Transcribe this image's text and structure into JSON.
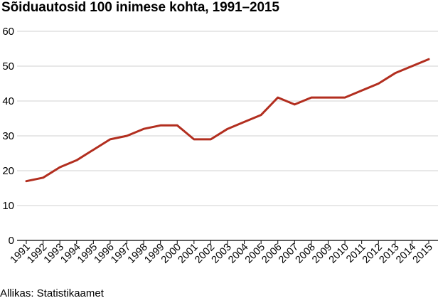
{
  "chart_data": {
    "type": "line",
    "title": "Sõiduautosid 100 inimese kohta, 1991–2015",
    "source": "Allikas: Statistikaamet",
    "xlabel": "",
    "ylabel": "",
    "ylim": [
      0,
      60
    ],
    "yticks": [
      0,
      10,
      20,
      30,
      40,
      50,
      60
    ],
    "grid": true,
    "line_color": "#b22e1f",
    "categories": [
      "1991",
      "1992",
      "1993",
      "1994",
      "1995",
      "1996",
      "1997",
      "1998",
      "1999",
      "2000",
      "2001",
      "2002",
      "2003",
      "2004",
      "2005",
      "2006",
      "2007",
      "2008",
      "2009",
      "2010",
      "2011",
      "2012",
      "2013",
      "2014",
      "2015"
    ],
    "series": [
      {
        "values": [
          17,
          18,
          21,
          23,
          26,
          29,
          30,
          32,
          33,
          33,
          29,
          29,
          32,
          34,
          36,
          41,
          39,
          41,
          41,
          41,
          43,
          45,
          48,
          50,
          52
        ]
      }
    ]
  }
}
